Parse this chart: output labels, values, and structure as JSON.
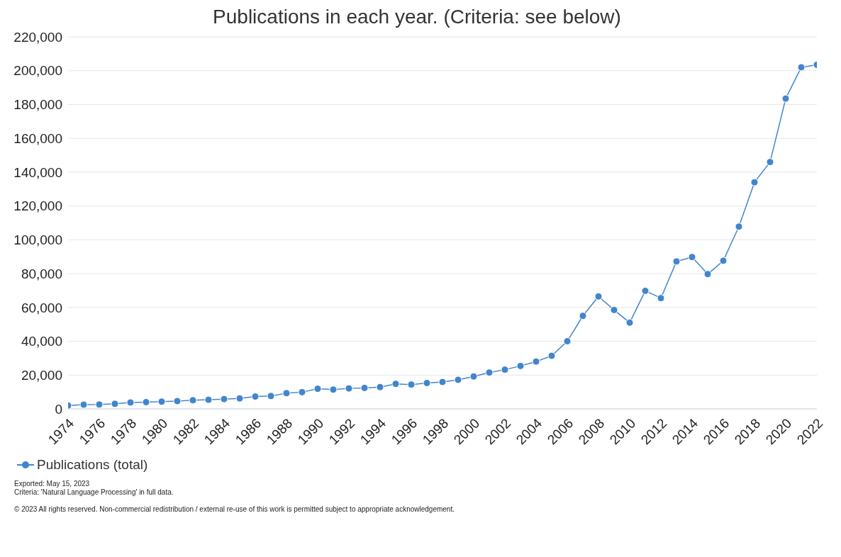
{
  "chart_data": {
    "type": "line",
    "title": "Publications in each year. (Criteria: see below)",
    "x": [
      1974,
      1975,
      1976,
      1977,
      1978,
      1979,
      1980,
      1981,
      1982,
      1983,
      1984,
      1985,
      1986,
      1987,
      1988,
      1989,
      1990,
      1991,
      1992,
      1993,
      1994,
      1995,
      1996,
      1997,
      1998,
      1999,
      2000,
      2001,
      2002,
      2003,
      2004,
      2005,
      2006,
      2007,
      2008,
      2009,
      2010,
      2011,
      2012,
      2013,
      2014,
      2015,
      2016,
      2017,
      2018,
      2019,
      2020,
      2021,
      2022
    ],
    "series": [
      {
        "name": "Publications (total)",
        "color": "#4285cc",
        "values": [
          2000,
          2500,
          2600,
          3000,
          3800,
          4000,
          4300,
          4600,
          5100,
          5400,
          5800,
          6200,
          7300,
          7600,
          9300,
          9900,
          11900,
          11400,
          12100,
          12400,
          12900,
          14800,
          14400,
          15300,
          15900,
          17200,
          19200,
          21500,
          23200,
          25400,
          28000,
          31400,
          40000,
          55000,
          66500,
          58500,
          51000,
          69800,
          65500,
          87200,
          89800,
          79700,
          87600,
          107800,
          134000,
          146000,
          183500,
          202000,
          203500
        ]
      }
    ],
    "xlim": [
      1974,
      2022
    ],
    "xticks": [
      1974,
      1976,
      1978,
      1980,
      1982,
      1984,
      1986,
      1988,
      1990,
      1992,
      1994,
      1996,
      1998,
      2000,
      2002,
      2004,
      2006,
      2008,
      2010,
      2012,
      2014,
      2016,
      2018,
      2020,
      2022
    ],
    "ylim": [
      0,
      220000
    ],
    "yticks": [
      0,
      {
        "value": 20000,
        "label": "20,000"
      },
      {
        "value": 40000,
        "label": "40,000"
      },
      {
        "value": 60000,
        "label": "60,000"
      },
      {
        "value": 80000,
        "label": "80,000"
      },
      {
        "value": 100000,
        "label": "100,000"
      },
      {
        "value": 120000,
        "label": "120,000"
      },
      {
        "value": 140000,
        "label": "140,000"
      },
      {
        "value": 160000,
        "label": "160,000"
      },
      {
        "value": 180000,
        "label": "180,000"
      },
      {
        "value": 200000,
        "label": "200,000"
      },
      {
        "value": 220000,
        "label": "220,000"
      }
    ],
    "grid": "y",
    "legend": "bottom left",
    "marker": "circle",
    "line_style": "solid",
    "annotations": [
      "Exported: May 15, 2023",
      "Criteria: 'Natural Language Processing' in full data.",
      "© 2023 All rights reserved. Non-commercial redistribution / external re-use of this work is permitted subject to appropriate acknowledgement."
    ]
  }
}
